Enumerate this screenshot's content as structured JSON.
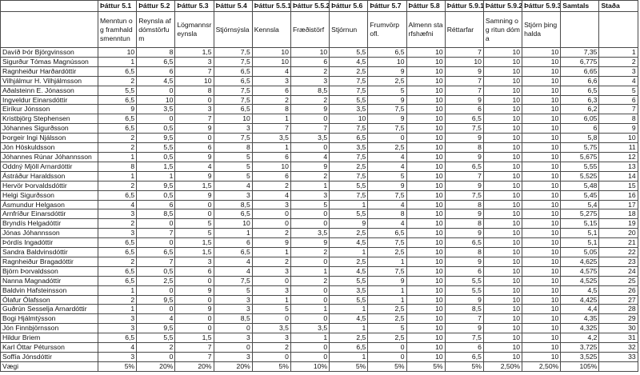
{
  "headers": [
    "",
    "Þáttur 5.1",
    "Þáttur 5.2",
    "Þáttur 5.3",
    "Þáttur 5.4",
    "Þáttur 5.5.1",
    "Þáttur 5.5.2",
    "Þáttur 5.6",
    "Þáttur 5.7",
    "Þáttur 5.8",
    "Þáttur 5.9.1",
    "Þáttur 5.9.2",
    "Þáttur 5.9.3",
    "Samtals",
    "Staða"
  ],
  "subheaders": [
    "",
    "Menntun og framhaldsmenntun",
    "Reynsla af dómstörfum",
    "Lögmannsreynsla",
    "Stjórnsýsla",
    "Kennsla",
    "Fræðistörf",
    "Stjórnun",
    "Frumvörp ofl.",
    "Almenn starfshæfni",
    "Réttarfar",
    "Samning og ritun dóma",
    "Stjórn þinghalda",
    "",
    ""
  ],
  "rows": [
    {
      "name": "Davíð Þór Björgvinsson",
      "values": [
        "10",
        "8",
        "1,5",
        "7,5",
        "10",
        "10",
        "5,5",
        "6,5",
        "10",
        "7",
        "10",
        "10"
      ],
      "total": "7,35",
      "rank": "1"
    },
    {
      "name": "Sigurður Tómas Magnússon",
      "values": [
        "1",
        "6,5",
        "3",
        "7,5",
        "10",
        "6",
        "4,5",
        "10",
        "10",
        "10",
        "10",
        "10"
      ],
      "total": "6,775",
      "rank": "2"
    },
    {
      "name": "Ragnheiður Harðardóttir",
      "values": [
        "6,5",
        "6",
        "7",
        "6,5",
        "4",
        "2",
        "2,5",
        "9",
        "10",
        "9",
        "10",
        "10"
      ],
      "total": "6,65",
      "rank": "3"
    },
    {
      "name": "Vilhjálmur H. Vilhjálmsson",
      "values": [
        "2",
        "4,5",
        "10",
        "6,5",
        "3",
        "3",
        "7,5",
        "2,5",
        "10",
        "7",
        "10",
        "10"
      ],
      "total": "6,6",
      "rank": "4"
    },
    {
      "name": "Aðalsteinn E. Jónasson",
      "values": [
        "5,5",
        "0",
        "8",
        "7,5",
        "6",
        "8,5",
        "7,5",
        "5",
        "10",
        "7",
        "10",
        "10"
      ],
      "total": "6,5",
      "rank": "5"
    },
    {
      "name": "Ingveldur Einarsdóttir",
      "values": [
        "6,5",
        "10",
        "0",
        "7,5",
        "2",
        "2",
        "5,5",
        "9",
        "10",
        "9",
        "10",
        "10"
      ],
      "total": "6,3",
      "rank": "6"
    },
    {
      "name": "Eiríkur Jónsson",
      "values": [
        "9",
        "3,5",
        "3",
        "6,5",
        "8",
        "9",
        "3,5",
        "7,5",
        "10",
        "6",
        "10",
        "10"
      ],
      "total": "6,2",
      "rank": "7"
    },
    {
      "name": "Kristbjörg Stephensen",
      "values": [
        "6,5",
        "0",
        "7",
        "10",
        "1",
        "0",
        "10",
        "9",
        "10",
        "6,5",
        "10",
        "10"
      ],
      "total": "6,05",
      "rank": "8"
    },
    {
      "name": "Jóhannes Sigurðsson",
      "values": [
        "6,5",
        "0,5",
        "9",
        "3",
        "7",
        "7",
        "7,5",
        "7,5",
        "10",
        "7,5",
        "10",
        "10"
      ],
      "total": "6",
      "rank": "9"
    },
    {
      "name": "Þorgeir Ingi Njálsson",
      "values": [
        "2",
        "9,5",
        "0",
        "7,5",
        "3,5",
        "3,5",
        "6,5",
        "0",
        "10",
        "9",
        "10",
        "10"
      ],
      "total": "5,8",
      "rank": "10"
    },
    {
      "name": "Jón Höskuldsson",
      "values": [
        "2",
        "5,5",
        "6",
        "8",
        "1",
        "0",
        "3,5",
        "2,5",
        "10",
        "8",
        "10",
        "10"
      ],
      "total": "5,75",
      "rank": "11"
    },
    {
      "name": "Jóhannes Rúnar Jóhannsson",
      "values": [
        "1",
        "0,5",
        "9",
        "5",
        "6",
        "4",
        "7,5",
        "4",
        "10",
        "9",
        "10",
        "10"
      ],
      "total": "5,675",
      "rank": "12"
    },
    {
      "name": "Oddný Mjöll Arnardóttir",
      "values": [
        "8",
        "1,5",
        "4",
        "5",
        "10",
        "9",
        "2,5",
        "4",
        "10",
        "6,5",
        "10",
        "10"
      ],
      "total": "5,55",
      "rank": "13"
    },
    {
      "name": "Ástráður Haraldsson",
      "values": [
        "1",
        "1",
        "9",
        "5",
        "6",
        "2",
        "7,5",
        "5",
        "10",
        "7",
        "10",
        "10"
      ],
      "total": "5,525",
      "rank": "14"
    },
    {
      "name": "Hervör Þorvaldsdóttir",
      "values": [
        "2",
        "9,5",
        "1,5",
        "4",
        "2",
        "1",
        "5,5",
        "9",
        "10",
        "9",
        "10",
        "10"
      ],
      "total": "5,48",
      "rank": "15"
    },
    {
      "name": "Helgi Sigurðsson",
      "values": [
        "6,5",
        "0,5",
        "9",
        "3",
        "4",
        "3",
        "7,5",
        "7,5",
        "10",
        "7,5",
        "10",
        "10"
      ],
      "total": "5,45",
      "rank": "16"
    },
    {
      "name": "Ásmundur Helgason",
      "values": [
        "4",
        "6",
        "0",
        "8,5",
        "3",
        "5",
        "1",
        "4",
        "10",
        "8",
        "10",
        "10"
      ],
      "total": "5,4",
      "rank": "17"
    },
    {
      "name": "Arnfríður Einarsdóttir",
      "values": [
        "3",
        "8,5",
        "0",
        "6,5",
        "0",
        "0",
        "5,5",
        "8",
        "10",
        "9",
        "10",
        "10"
      ],
      "total": "5,275",
      "rank": "18"
    },
    {
      "name": "Bryndís Helgadóttir",
      "values": [
        "2",
        "0",
        "5",
        "10",
        "0",
        "0",
        "9",
        "4",
        "10",
        "8",
        "10",
        "10"
      ],
      "total": "5,15",
      "rank": "19"
    },
    {
      "name": "Jónas Jóhannsson",
      "values": [
        "3",
        "7",
        "5",
        "1",
        "2",
        "3,5",
        "2,5",
        "6,5",
        "10",
        "9",
        "10",
        "10"
      ],
      "total": "5,1",
      "rank": "20"
    },
    {
      "name": "Þórdís Ingadóttir",
      "values": [
        "6,5",
        "0",
        "1,5",
        "6",
        "9",
        "9",
        "4,5",
        "7,5",
        "10",
        "6,5",
        "10",
        "10"
      ],
      "total": "5,1",
      "rank": "21"
    },
    {
      "name": "Sandra Baldvinsdóttir",
      "values": [
        "6,5",
        "6,5",
        "1,5",
        "6,5",
        "1",
        "2",
        "1",
        "2,5",
        "10",
        "8",
        "10",
        "10"
      ],
      "total": "5,05",
      "rank": "22"
    },
    {
      "name": "Ragnheiður Bragadóttir",
      "values": [
        "2",
        "7",
        "3",
        "4",
        "2",
        "0",
        "2,5",
        "1",
        "10",
        "9",
        "10",
        "10"
      ],
      "total": "4,625",
      "rank": "23"
    },
    {
      "name": "Björn Þorvaldsson",
      "values": [
        "6,5",
        "0,5",
        "6",
        "4",
        "3",
        "1",
        "4,5",
        "7,5",
        "10",
        "6",
        "10",
        "10"
      ],
      "total": "4,575",
      "rank": "24"
    },
    {
      "name": "Nanna Magnadóttir",
      "values": [
        "6,5",
        "2,5",
        "0",
        "7,5",
        "0",
        "2",
        "5,5",
        "9",
        "10",
        "5,5",
        "10",
        "10"
      ],
      "total": "4,525",
      "rank": "25"
    },
    {
      "name": "Baldvin Hafsteinsson",
      "values": [
        "1",
        "0",
        "9",
        "5",
        "3",
        "0",
        "3,5",
        "1",
        "10",
        "5,5",
        "10",
        "10"
      ],
      "total": "4,5",
      "rank": "26"
    },
    {
      "name": "Ólafur Ólafsson",
      "values": [
        "2",
        "9,5",
        "0",
        "3",
        "1",
        "0",
        "5,5",
        "1",
        "10",
        "9",
        "10",
        "10"
      ],
      "total": "4,425",
      "rank": "27"
    },
    {
      "name": "Guðrún Sesselja Arnardóttir",
      "values": [
        "1",
        "0",
        "9",
        "3",
        "5",
        "1",
        "1",
        "2,5",
        "10",
        "8,5",
        "10",
        "10"
      ],
      "total": "4,4",
      "rank": "28"
    },
    {
      "name": "Bogi Hjálmtýsson",
      "values": [
        "3",
        "4",
        "0",
        "8,5",
        "0",
        "0",
        "4,5",
        "2,5",
        "10",
        "7",
        "10",
        "10"
      ],
      "total": "4,35",
      "rank": "29"
    },
    {
      "name": "Jón Finnbjörnsson",
      "values": [
        "3",
        "9,5",
        "0",
        "0",
        "3,5",
        "3,5",
        "1",
        "5",
        "10",
        "9",
        "10",
        "10"
      ],
      "total": "4,325",
      "rank": "30"
    },
    {
      "name": "Hildur Briem",
      "values": [
        "6,5",
        "5,5",
        "1,5",
        "3",
        "3",
        "1",
        "2,5",
        "2,5",
        "10",
        "7,5",
        "10",
        "10"
      ],
      "total": "4,2",
      "rank": "31"
    },
    {
      "name": "Karl Óttar Pétursson",
      "values": [
        "4",
        "2",
        "7",
        "0",
        "2",
        "0",
        "6,5",
        "0",
        "10",
        "6",
        "10",
        "10"
      ],
      "total": "3,725",
      "rank": "32"
    },
    {
      "name": "Soffía Jónsdóttir",
      "values": [
        "3",
        "0",
        "7",
        "3",
        "0",
        "0",
        "1",
        "0",
        "10",
        "6,5",
        "10",
        "10"
      ],
      "total": "3,525",
      "rank": "33"
    }
  ],
  "weights": {
    "label": "Vægi",
    "values": [
      "5%",
      "20%",
      "20%",
      "20%",
      "5%",
      "10%",
      "5%",
      "5%",
      "5%",
      "5%",
      "2,50%",
      "2,50%"
    ],
    "total": "105%",
    "rank": ""
  }
}
